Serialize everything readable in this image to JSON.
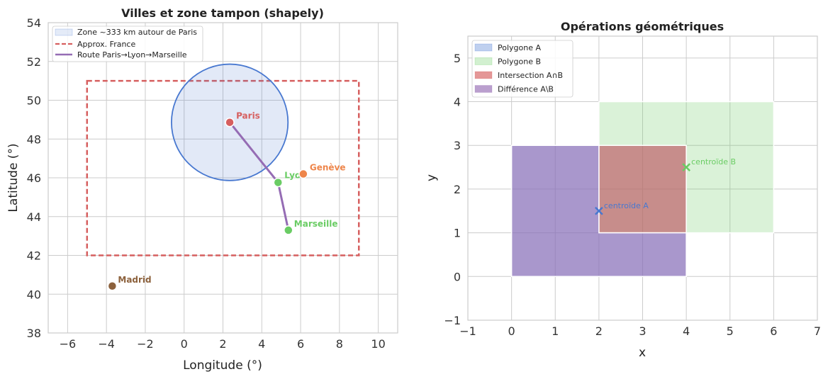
{
  "colors": {
    "blue": "#4878d0",
    "red": "#d65f5f",
    "green": "#6acc64",
    "purple": "#956cb4",
    "orange": "#ee854a",
    "brown": "#8c613c",
    "grid": "#cccccc",
    "spine": "#cccccc"
  },
  "chart_data": [
    {
      "type": "scatter",
      "title": "Villes et zone tampon (shapely)",
      "xlabel": "Longitude (°)",
      "ylabel": "Latitude (°)",
      "xlim": [
        -7,
        11
      ],
      "ylim": [
        38,
        54
      ],
      "xticks": [
        -6,
        -4,
        -2,
        0,
        2,
        4,
        6,
        8,
        10
      ],
      "yticks": [
        38,
        40,
        42,
        44,
        46,
        48,
        50,
        52,
        54
      ],
      "xtick_labels": [
        "−6",
        "−4",
        "−2",
        "0",
        "2",
        "4",
        "6",
        "8",
        "10"
      ],
      "ytick_labels": [
        "38",
        "40",
        "42",
        "44",
        "46",
        "48",
        "50",
        "52",
        "54"
      ],
      "grid": true,
      "legend_position": "top-left",
      "buffer": {
        "label": "Zone ~333 km autour de Paris",
        "center": [
          2.35,
          48.86
        ],
        "radius": 3.0
      },
      "france_box": {
        "label": "Approx. France",
        "xmin": -5,
        "xmax": 9,
        "ymin": 42,
        "ymax": 51
      },
      "route": {
        "label": "Route Paris→Lyon→Marseille",
        "points": [
          [
            2.35,
            48.86
          ],
          [
            4.84,
            45.76
          ],
          [
            5.37,
            43.3
          ]
        ]
      },
      "cities": [
        {
          "name": "Paris",
          "lon": 2.35,
          "lat": 48.86,
          "color": "#d65f5f"
        },
        {
          "name": "Lyon",
          "lon": 4.84,
          "lat": 45.76,
          "color": "#6acc64"
        },
        {
          "name": "Marseille",
          "lon": 5.37,
          "lat": 43.3,
          "color": "#6acc64"
        },
        {
          "name": "Genève",
          "lon": 6.14,
          "lat": 46.2,
          "color": "#ee854a"
        },
        {
          "name": "Madrid",
          "lon": -3.7,
          "lat": 40.42,
          "color": "#8c613c"
        }
      ]
    },
    {
      "type": "area",
      "title": "Opérations géométriques",
      "xlabel": "x",
      "ylabel": "y",
      "xlim": [
        -1,
        7
      ],
      "ylim": [
        -1,
        5.5
      ],
      "xticks": [
        -1,
        0,
        1,
        2,
        3,
        4,
        5,
        6,
        7
      ],
      "yticks": [
        -1,
        0,
        1,
        2,
        3,
        4,
        5
      ],
      "xtick_labels": [
        "−1",
        "0",
        "1",
        "2",
        "3",
        "4",
        "5",
        "6",
        "7"
      ],
      "ytick_labels": [
        "−1",
        "0",
        "1",
        "2",
        "3",
        "4",
        "5"
      ],
      "grid": true,
      "legend_position": "top-left",
      "polygons": [
        {
          "name": "Polygone A",
          "coords": [
            [
              0,
              0
            ],
            [
              4,
              0
            ],
            [
              4,
              3
            ],
            [
              0,
              3
            ]
          ],
          "color": "#4878d0",
          "opacity": 0.3
        },
        {
          "name": "Polygone B",
          "coords": [
            [
              2,
              1
            ],
            [
              6,
              1
            ],
            [
              6,
              4
            ],
            [
              2,
              4
            ]
          ],
          "color": "#6acc64",
          "opacity": 0.25
        },
        {
          "name": "Intersection A∩B",
          "coords": [
            [
              2,
              1
            ],
            [
              4,
              1
            ],
            [
              4,
              3
            ],
            [
              2,
              3
            ]
          ],
          "color": "#d65f5f",
          "opacity": 0.6
        },
        {
          "name": "Différence A\\B",
          "coords": [
            [
              0,
              0
            ],
            [
              4,
              0
            ],
            [
              4,
              1
            ],
            [
              2,
              1
            ],
            [
              2,
              3
            ],
            [
              0,
              3
            ]
          ],
          "color": "#956cb4",
          "opacity": 0.6
        }
      ],
      "centroids": [
        {
          "label": "centroïde A",
          "x": 2,
          "y": 1.5,
          "color": "#4878d0"
        },
        {
          "label": "centroïde B",
          "x": 4,
          "y": 2.5,
          "color": "#6acc64"
        }
      ]
    }
  ]
}
